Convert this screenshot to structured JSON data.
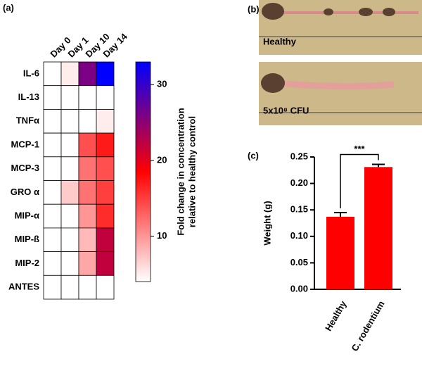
{
  "panels": {
    "a": "(a)",
    "b": "(b)",
    "c": "(c)"
  },
  "photos": [
    "Healthy",
    "5x10⁸ CFU"
  ],
  "chart_data": [
    {
      "type": "heatmap",
      "rows": [
        "IL-6",
        "IL-13",
        "TNFα",
        "MCP-1",
        "MCP-3",
        "GRO α",
        "MIP-α",
        "MIP-ß",
        "MIP-2",
        "ANTES"
      ],
      "columns": [
        "Day 0",
        "Day 1",
        "Day 10",
        "Day 14"
      ],
      "values": [
        [
          1,
          5,
          26,
          33
        ],
        [
          1,
          2,
          3,
          4
        ],
        [
          1,
          2,
          4,
          5
        ],
        [
          1,
          4,
          14,
          17
        ],
        [
          1,
          4,
          12,
          14
        ],
        [
          1,
          7,
          12,
          15
        ],
        [
          1,
          4,
          10,
          16
        ],
        [
          1,
          3,
          8,
          22
        ],
        [
          1,
          4,
          9,
          22
        ],
        [
          1,
          2,
          3,
          4
        ]
      ],
      "clim": [
        4,
        33
      ],
      "cticks": [
        10,
        20,
        30
      ],
      "colors": [
        "#ffffff",
        "#ff0000",
        "#0000ff"
      ],
      "colorbar_label": [
        "Fold change in concentration",
        "relative to healthy control"
      ]
    },
    {
      "type": "bar",
      "categories": [
        "Healthy",
        "C. rodentium"
      ],
      "values": [
        0.137,
        0.231
      ],
      "errors": [
        0.008,
        0.005
      ],
      "color": "#ff0000",
      "ylabel": "Weight (g)",
      "ylim": [
        0,
        0.25
      ],
      "yticks": [
        {
          "value": 0,
          "label": "0.00"
        },
        {
          "value": 0.05,
          "label": "0.05"
        },
        {
          "value": 0.1,
          "label": "0.10"
        },
        {
          "value": 0.15,
          "label": "0.15"
        },
        {
          "value": 0.2,
          "label": "0.20"
        },
        {
          "value": 0.25,
          "label": "0.25"
        }
      ],
      "annotation": "***"
    }
  ]
}
